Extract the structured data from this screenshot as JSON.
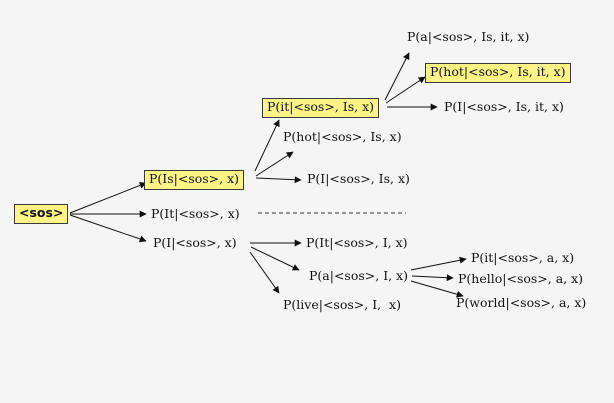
{
  "colors": {
    "highlight": "#fcf486",
    "background": "#f5f5f5",
    "stroke": "#111111"
  },
  "nodes": {
    "root": "<sos>",
    "p_is": "P(Is|<sos>, x)",
    "p_it_l1": "P(It|<sos>, x)",
    "p_i_l1": "P(I|<sos>, x)",
    "p_it_l2": "P(it|<sos>, Is, x)",
    "p_hot_l2": "P(hot|<sos>, Is, x)",
    "p_i_l2": "P(I|<sos>, Is, x)",
    "p_a_l3": "P(a|<sos>, Is, it, x)",
    "p_hot_l3": "P(hot|<sos>, Is, it, x)",
    "p_i_l3": "P(I|<sos>, Is, it, x)",
    "p_it_after_i": "P(It|<sos>, I, x)",
    "p_a_after_i": "P(a|<sos>, I, x)",
    "p_live_after_i": "P(live|<sos>, I,  x)",
    "p_it_after_a": "P(it|<sos>, a, x)",
    "p_hello_after_a": "P(hello|<sos>, a, x)",
    "p_world_after_a": "P(world|<sos>, a, x)"
  }
}
